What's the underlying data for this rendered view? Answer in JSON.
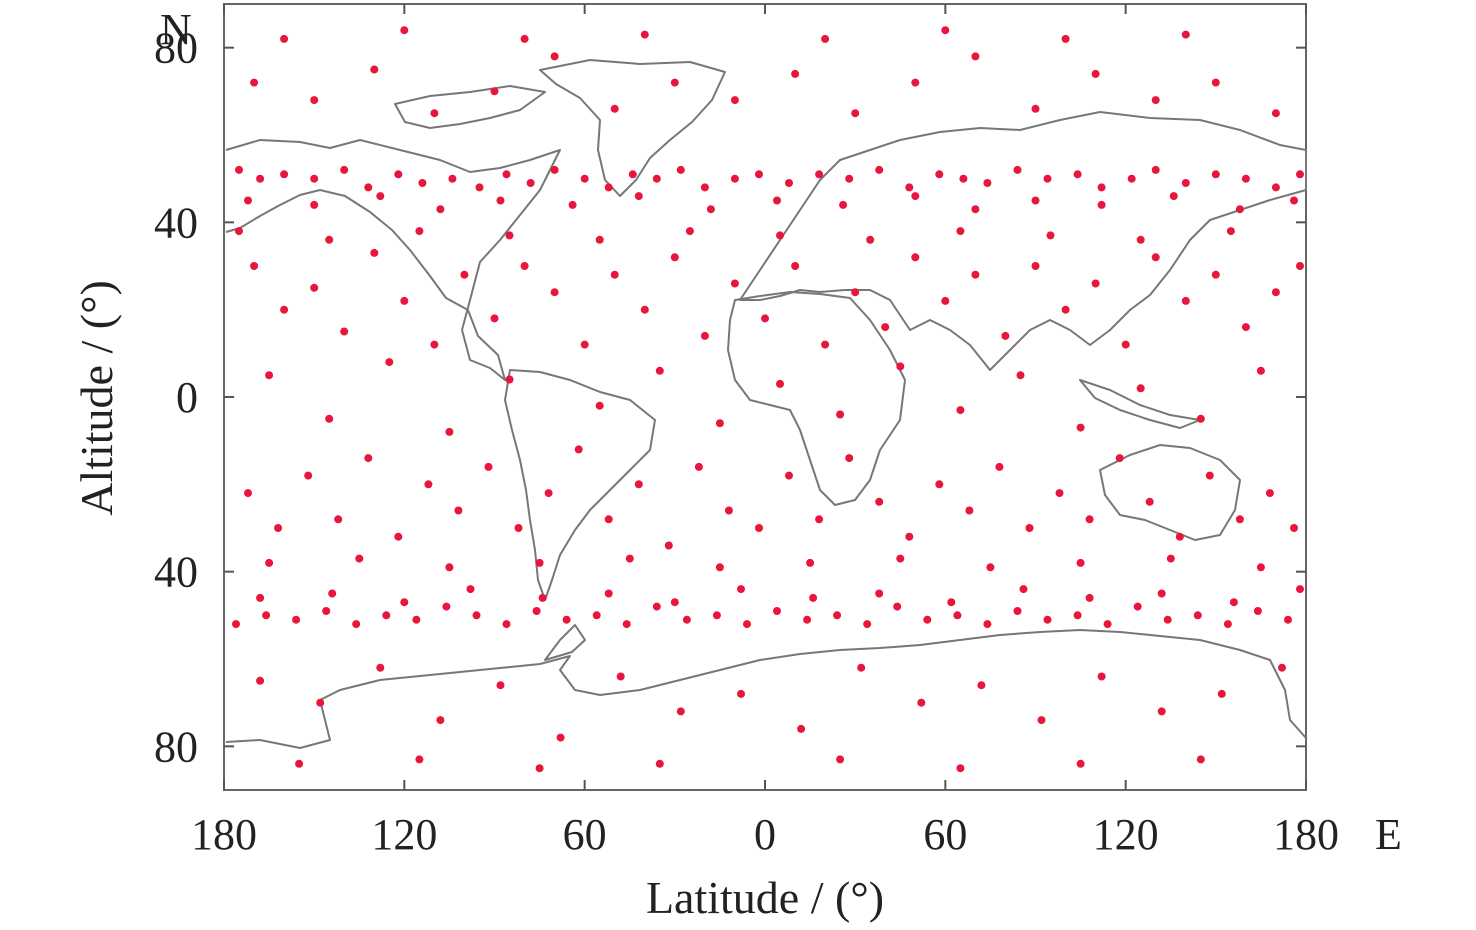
{
  "chart_data": {
    "type": "scatter",
    "title": "",
    "xlabel": "Latitude / (°)",
    "ylabel": "Altitude / (°)",
    "x_direction_label": "E",
    "y_direction_label": "N",
    "xlim": [
      -180,
      180
    ],
    "ylim": [
      -90,
      90
    ],
    "grid": false,
    "x_ticks": [
      -180,
      -120,
      -60,
      0,
      60,
      120,
      180
    ],
    "x_tick_labels": [
      "180",
      "120",
      "60",
      "0",
      "60",
      "120",
      "180"
    ],
    "y_ticks": [
      80,
      40,
      0,
      -40,
      -80
    ],
    "y_tick_labels": [
      "80",
      "40",
      "0",
      "40",
      "80"
    ],
    "marker_color": "#e8163a",
    "background_map": "world coastlines",
    "series": [
      {
        "values": [
          [
            -175,
            52
          ],
          [
            -168,
            50
          ],
          [
            -160,
            51
          ],
          [
            -150,
            50
          ],
          [
            -140,
            52
          ],
          [
            -132,
            48
          ],
          [
            -122,
            51
          ],
          [
            -114,
            49
          ],
          [
            -104,
            50
          ],
          [
            -95,
            48
          ],
          [
            -86,
            51
          ],
          [
            -78,
            49
          ],
          [
            -70,
            52
          ],
          [
            -60,
            50
          ],
          [
            -52,
            48
          ],
          [
            -44,
            51
          ],
          [
            -36,
            50
          ],
          [
            -28,
            52
          ],
          [
            -20,
            48
          ],
          [
            -10,
            50
          ],
          [
            -2,
            51
          ],
          [
            8,
            49
          ],
          [
            18,
            51
          ],
          [
            28,
            50
          ],
          [
            38,
            52
          ],
          [
            48,
            48
          ],
          [
            58,
            51
          ],
          [
            66,
            50
          ],
          [
            74,
            49
          ],
          [
            84,
            52
          ],
          [
            94,
            50
          ],
          [
            104,
            51
          ],
          [
            112,
            48
          ],
          [
            122,
            50
          ],
          [
            130,
            52
          ],
          [
            140,
            49
          ],
          [
            150,
            51
          ],
          [
            160,
            50
          ],
          [
            170,
            48
          ],
          [
            178,
            51
          ],
          [
            -172,
            45
          ],
          [
            -150,
            44
          ],
          [
            -128,
            46
          ],
          [
            -108,
            43
          ],
          [
            -88,
            45
          ],
          [
            -64,
            44
          ],
          [
            -42,
            46
          ],
          [
            -18,
            43
          ],
          [
            4,
            45
          ],
          [
            26,
            44
          ],
          [
            50,
            46
          ],
          [
            70,
            43
          ],
          [
            90,
            45
          ],
          [
            112,
            44
          ],
          [
            136,
            46
          ],
          [
            158,
            43
          ],
          [
            176,
            45
          ],
          [
            -176,
            -52
          ],
          [
            -166,
            -50
          ],
          [
            -156,
            -51
          ],
          [
            -146,
            -49
          ],
          [
            -136,
            -52
          ],
          [
            -126,
            -50
          ],
          [
            -116,
            -51
          ],
          [
            -106,
            -48
          ],
          [
            -96,
            -50
          ],
          [
            -86,
            -52
          ],
          [
            -76,
            -49
          ],
          [
            -66,
            -51
          ],
          [
            -56,
            -50
          ],
          [
            -46,
            -52
          ],
          [
            -36,
            -48
          ],
          [
            -26,
            -51
          ],
          [
            -16,
            -50
          ],
          [
            -6,
            -52
          ],
          [
            4,
            -49
          ],
          [
            14,
            -51
          ],
          [
            24,
            -50
          ],
          [
            34,
            -52
          ],
          [
            44,
            -48
          ],
          [
            54,
            -51
          ],
          [
            64,
            -50
          ],
          [
            74,
            -52
          ],
          [
            84,
            -49
          ],
          [
            94,
            -51
          ],
          [
            104,
            -50
          ],
          [
            114,
            -52
          ],
          [
            124,
            -48
          ],
          [
            134,
            -51
          ],
          [
            144,
            -50
          ],
          [
            154,
            -52
          ],
          [
            164,
            -49
          ],
          [
            174,
            -51
          ],
          [
            -168,
            -46
          ],
          [
            -144,
            -45
          ],
          [
            -120,
            -47
          ],
          [
            -98,
            -44
          ],
          [
            -74,
            -46
          ],
          [
            -52,
            -45
          ],
          [
            -30,
            -47
          ],
          [
            -8,
            -44
          ],
          [
            16,
            -46
          ],
          [
            38,
            -45
          ],
          [
            62,
            -47
          ],
          [
            86,
            -44
          ],
          [
            108,
            -46
          ],
          [
            132,
            -45
          ],
          [
            156,
            -47
          ],
          [
            178,
            -44
          ],
          [
            -170,
            30
          ],
          [
            -160,
            20
          ],
          [
            -150,
            25
          ],
          [
            -140,
            15
          ],
          [
            -130,
            33
          ],
          [
            -120,
            22
          ],
          [
            -110,
            12
          ],
          [
            -100,
            28
          ],
          [
            -90,
            18
          ],
          [
            -80,
            30
          ],
          [
            -70,
            24
          ],
          [
            -60,
            12
          ],
          [
            -50,
            28
          ],
          [
            -40,
            20
          ],
          [
            -30,
            32
          ],
          [
            -20,
            14
          ],
          [
            -10,
            26
          ],
          [
            0,
            18
          ],
          [
            10,
            30
          ],
          [
            20,
            12
          ],
          [
            30,
            24
          ],
          [
            40,
            16
          ],
          [
            50,
            32
          ],
          [
            60,
            22
          ],
          [
            70,
            28
          ],
          [
            80,
            14
          ],
          [
            90,
            30
          ],
          [
            100,
            20
          ],
          [
            110,
            26
          ],
          [
            120,
            12
          ],
          [
            130,
            32
          ],
          [
            140,
            22
          ],
          [
            150,
            28
          ],
          [
            160,
            16
          ],
          [
            170,
            24
          ],
          [
            178,
            30
          ],
          [
            -172,
            -22
          ],
          [
            -162,
            -30
          ],
          [
            -152,
            -18
          ],
          [
            -142,
            -28
          ],
          [
            -132,
            -14
          ],
          [
            -122,
            -32
          ],
          [
            -112,
            -20
          ],
          [
            -102,
            -26
          ],
          [
            -92,
            -16
          ],
          [
            -82,
            -30
          ],
          [
            -72,
            -22
          ],
          [
            -62,
            -12
          ],
          [
            -52,
            -28
          ],
          [
            -42,
            -20
          ],
          [
            -32,
            -34
          ],
          [
            -22,
            -16
          ],
          [
            -12,
            -26
          ],
          [
            -2,
            -30
          ],
          [
            8,
            -18
          ],
          [
            18,
            -28
          ],
          [
            28,
            -14
          ],
          [
            38,
            -24
          ],
          [
            48,
            -32
          ],
          [
            58,
            -20
          ],
          [
            68,
            -26
          ],
          [
            78,
            -16
          ],
          [
            88,
            -30
          ],
          [
            98,
            -22
          ],
          [
            108,
            -28
          ],
          [
            118,
            -14
          ],
          [
            128,
            -24
          ],
          [
            138,
            -32
          ],
          [
            148,
            -18
          ],
          [
            158,
            -28
          ],
          [
            168,
            -22
          ],
          [
            176,
            -30
          ],
          [
            -165,
            5
          ],
          [
            -145,
            -5
          ],
          [
            -125,
            8
          ],
          [
            -105,
            -8
          ],
          [
            -85,
            4
          ],
          [
            -55,
            -2
          ],
          [
            -35,
            6
          ],
          [
            -15,
            -6
          ],
          [
            5,
            3
          ],
          [
            25,
            -4
          ],
          [
            45,
            7
          ],
          [
            65,
            -3
          ],
          [
            85,
            5
          ],
          [
            105,
            -7
          ],
          [
            125,
            2
          ],
          [
            145,
            -5
          ],
          [
            165,
            6
          ],
          [
            -170,
            72
          ],
          [
            -150,
            68
          ],
          [
            -130,
            75
          ],
          [
            -110,
            65
          ],
          [
            -90,
            70
          ],
          [
            -70,
            78
          ],
          [
            -50,
            66
          ],
          [
            -30,
            72
          ],
          [
            -10,
            68
          ],
          [
            10,
            74
          ],
          [
            30,
            65
          ],
          [
            50,
            72
          ],
          [
            70,
            78
          ],
          [
            90,
            66
          ],
          [
            110,
            74
          ],
          [
            130,
            68
          ],
          [
            150,
            72
          ],
          [
            170,
            65
          ],
          [
            -160,
            82
          ],
          [
            -120,
            84
          ],
          [
            -80,
            82
          ],
          [
            -40,
            83
          ],
          [
            20,
            82
          ],
          [
            60,
            84
          ],
          [
            100,
            82
          ],
          [
            140,
            83
          ],
          [
            -168,
            -65
          ],
          [
            -148,
            -70
          ],
          [
            -128,
            -62
          ],
          [
            -108,
            -74
          ],
          [
            -88,
            -66
          ],
          [
            -68,
            -78
          ],
          [
            -48,
            -64
          ],
          [
            -28,
            -72
          ],
          [
            -8,
            -68
          ],
          [
            12,
            -76
          ],
          [
            32,
            -62
          ],
          [
            52,
            -70
          ],
          [
            72,
            -66
          ],
          [
            92,
            -74
          ],
          [
            112,
            -64
          ],
          [
            132,
            -72
          ],
          [
            152,
            -68
          ],
          [
            172,
            -62
          ],
          [
            -155,
            -84
          ],
          [
            -115,
            -83
          ],
          [
            -75,
            -85
          ],
          [
            -35,
            -84
          ],
          [
            25,
            -83
          ],
          [
            65,
            -85
          ],
          [
            105,
            -84
          ],
          [
            145,
            -83
          ],
          [
            -175,
            38
          ],
          [
            -145,
            36
          ],
          [
            -115,
            38
          ],
          [
            -85,
            37
          ],
          [
            -55,
            36
          ],
          [
            -25,
            38
          ],
          [
            5,
            37
          ],
          [
            35,
            36
          ],
          [
            65,
            38
          ],
          [
            95,
            37
          ],
          [
            125,
            36
          ],
          [
            155,
            38
          ],
          [
            -165,
            -38
          ],
          [
            -135,
            -37
          ],
          [
            -105,
            -39
          ],
          [
            -75,
            -38
          ],
          [
            -45,
            -37
          ],
          [
            -15,
            -39
          ],
          [
            15,
            -38
          ],
          [
            45,
            -37
          ],
          [
            75,
            -39
          ],
          [
            105,
            -38
          ],
          [
            135,
            -37
          ],
          [
            165,
            -39
          ]
        ]
      }
    ]
  }
}
